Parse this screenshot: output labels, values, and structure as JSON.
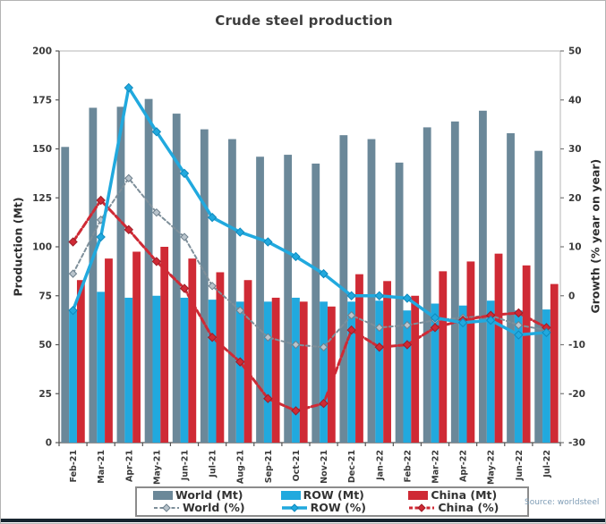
{
  "source_label": "Source: worldsteel",
  "chart_data": {
    "type": "bar+line combo",
    "title": "Crude steel production",
    "categories": [
      "Feb-21",
      "Mar-21",
      "Apr-21",
      "May-21",
      "Jun-21",
      "Jul-21",
      "Aug-21",
      "Sep-21",
      "Oct-21",
      "Nov-21",
      "Dec-21",
      "Jan-22",
      "Feb-22",
      "Mar-22",
      "Apr-22",
      "May-22",
      "Jun-22",
      "Jul-22"
    ],
    "series": [
      {
        "name": "World (Mt)",
        "type": "bar",
        "axis": "left",
        "color": "#6b8899",
        "values": [
          151,
          171,
          171.5,
          175.5,
          168,
          160,
          155,
          146,
          147,
          142.5,
          157,
          155,
          143,
          161,
          164,
          169.5,
          158,
          149
        ]
      },
      {
        "name": "ROW (Mt)",
        "type": "bar",
        "axis": "left",
        "color": "#21a9de",
        "values": [
          68,
          77,
          74,
          75,
          74,
          73,
          72,
          72,
          74,
          72,
          72,
          72.5,
          67.5,
          71,
          70,
          72.5,
          67.5,
          68
        ]
      },
      {
        "name": "China (Mt)",
        "type": "bar",
        "axis": "left",
        "color": "#cf2a35",
        "values": [
          83,
          94,
          97.5,
          100,
          94,
          87,
          83,
          74,
          72,
          69.5,
          86,
          82.5,
          75,
          87.5,
          92.5,
          96.5,
          90.5,
          81
        ]
      },
      {
        "name": "World (%)",
        "type": "line",
        "axis": "right",
        "color": "#7e8f9a",
        "dash": "4,3",
        "width": 2,
        "marker_fill": "#b9c4cc",
        "marker_stroke": "#6d7f8c",
        "values": [
          4.5,
          15.5,
          24,
          17,
          12,
          2,
          -3,
          -8.5,
          -10,
          -10.5,
          -4,
          -6.5,
          -6,
          -5,
          -4.5,
          -4,
          -6,
          -7
        ]
      },
      {
        "name": "ROW (%)",
        "type": "line",
        "axis": "right",
        "color": "#21a9de",
        "dash": "",
        "width": 3.5,
        "marker_fill": "#21a9de",
        "marker_stroke": "#0f89bd",
        "values": [
          -3,
          12,
          42.5,
          33.5,
          25,
          16,
          13,
          11,
          8,
          4.5,
          0,
          0,
          -0.5,
          -4.5,
          -5.5,
          -5,
          -8,
          -7.5
        ]
      },
      {
        "name": "China (%)",
        "type": "line",
        "axis": "right",
        "color": "#cf2a35",
        "dash": "7,3",
        "width": 3,
        "marker_fill": "#cf2a35",
        "marker_stroke": "#9e1d27",
        "values": [
          11,
          19.5,
          13.5,
          7,
          1.5,
          -8.5,
          -13.5,
          -21,
          -23.5,
          -22,
          -7,
          -10.5,
          -10,
          -6.5,
          -5,
          -4,
          -3.5,
          -6.5
        ]
      }
    ],
    "left_axis": {
      "label": "Production (Mt)",
      "ticks": [
        0,
        25,
        50,
        75,
        100,
        125,
        150,
        175,
        200
      ],
      "range": [
        0,
        200
      ]
    },
    "right_axis": {
      "label": "Growth (% year on year)",
      "ticks": [
        -30,
        -20,
        -10,
        0,
        10,
        20,
        30,
        40,
        50
      ],
      "range": [
        -30,
        50
      ]
    },
    "legend_position": "bottom",
    "grid": false
  }
}
